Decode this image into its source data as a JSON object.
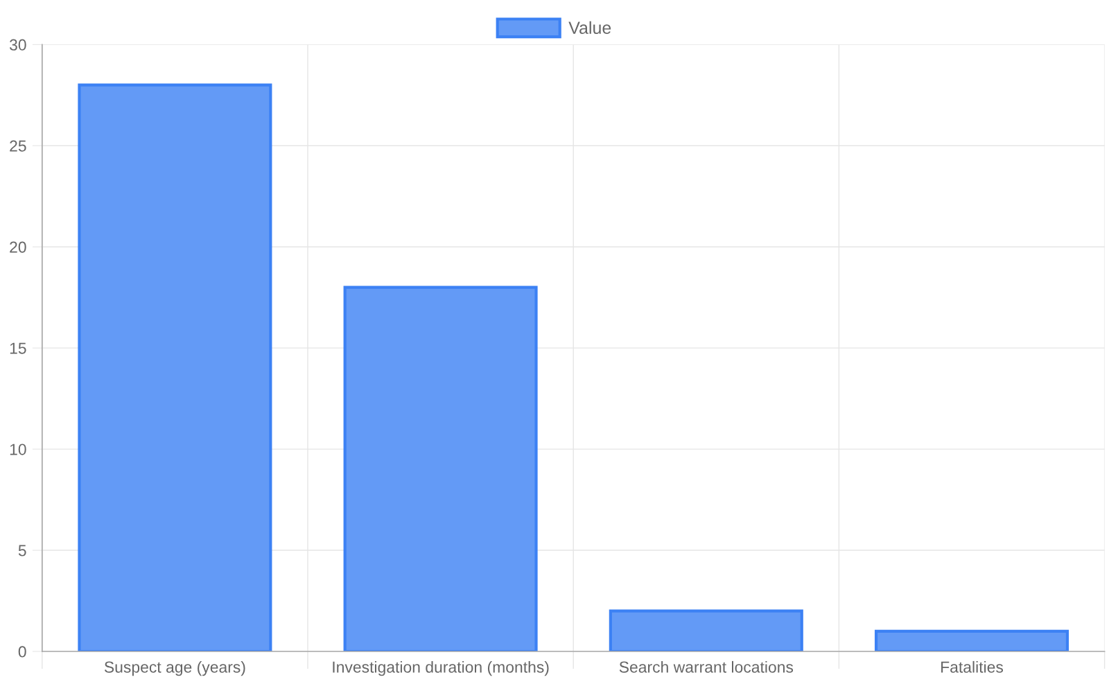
{
  "chart_data": {
    "type": "bar",
    "categories": [
      "Suspect age (years)",
      "Investigation duration (months)",
      "Search warrant locations",
      "Fatalities"
    ],
    "series": [
      {
        "name": "Value",
        "color": "#639af6",
        "values": [
          28,
          18,
          2,
          1
        ]
      }
    ],
    "ylim": [
      0,
      30
    ],
    "yticks": [
      0,
      5,
      10,
      15,
      20,
      25,
      30
    ],
    "grid": true,
    "legend": "top"
  }
}
